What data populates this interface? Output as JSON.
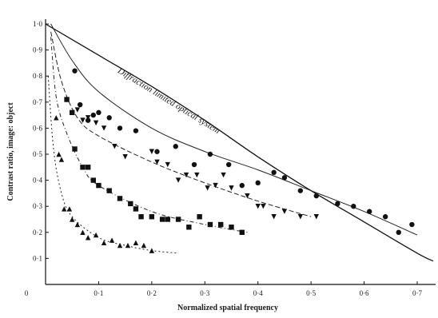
{
  "chart_data": {
    "type": "scatter",
    "xlabel": "Normalized spatial frequency",
    "ylabel": "Contrast ratio, image: object",
    "xlim": [
      0,
      0.73
    ],
    "ylim": [
      0,
      1.0
    ],
    "x_ticks": [
      {
        "value": 0,
        "label": "0"
      },
      {
        "value": 0.1,
        "label": "0·1"
      },
      {
        "value": 0.2,
        "label": "0·2"
      },
      {
        "value": 0.3,
        "label": "0·3"
      },
      {
        "value": 0.4,
        "label": "0·4"
      },
      {
        "value": 0.5,
        "label": "0·5"
      },
      {
        "value": 0.6,
        "label": "0·6"
      },
      {
        "value": 0.7,
        "label": "0·7"
      }
    ],
    "y_ticks": [
      {
        "value": 0.1,
        "label": "0·1"
      },
      {
        "value": 0.2,
        "label": "0·2"
      },
      {
        "value": 0.3,
        "label": "0·3"
      },
      {
        "value": 0.4,
        "label": "0·4"
      },
      {
        "value": 0.5,
        "label": "0·5"
      },
      {
        "value": 0.6,
        "label": "0·6"
      },
      {
        "value": 0.7,
        "label": "0·7"
      },
      {
        "value": 0.8,
        "label": "0·8"
      },
      {
        "value": 0.9,
        "label": "0·9"
      },
      {
        "value": 1.0,
        "label": "1·0"
      }
    ],
    "grid": false,
    "annotation": "Diffraction limited optical system",
    "series": [
      {
        "marker": "circle",
        "points": [
          [
            0.055,
            0.82
          ],
          [
            0.065,
            0.69
          ],
          [
            0.08,
            0.63
          ],
          [
            0.09,
            0.65
          ],
          [
            0.1,
            0.66
          ],
          [
            0.12,
            0.64
          ],
          [
            0.14,
            0.6
          ],
          [
            0.17,
            0.59
          ],
          [
            0.21,
            0.51
          ],
          [
            0.245,
            0.53
          ],
          [
            0.28,
            0.46
          ],
          [
            0.31,
            0.5
          ],
          [
            0.345,
            0.46
          ],
          [
            0.37,
            0.38
          ],
          [
            0.4,
            0.39
          ],
          [
            0.43,
            0.43
          ],
          [
            0.45,
            0.41
          ],
          [
            0.48,
            0.36
          ],
          [
            0.51,
            0.34
          ],
          [
            0.55,
            0.31
          ],
          [
            0.58,
            0.3
          ],
          [
            0.61,
            0.28
          ],
          [
            0.64,
            0.26
          ],
          [
            0.665,
            0.2
          ],
          [
            0.69,
            0.23
          ]
        ],
        "curve": [
          [
            0.01,
            1.0
          ],
          [
            0.05,
            0.86
          ],
          [
            0.1,
            0.74
          ],
          [
            0.2,
            0.6
          ],
          [
            0.3,
            0.51
          ],
          [
            0.4,
            0.44
          ],
          [
            0.5,
            0.36
          ],
          [
            0.6,
            0.28
          ],
          [
            0.7,
            0.19
          ]
        ]
      },
      {
        "marker": "triangle-down",
        "points": [
          [
            0.06,
            0.67
          ],
          [
            0.07,
            0.63
          ],
          [
            0.08,
            0.64
          ],
          [
            0.095,
            0.62
          ],
          [
            0.11,
            0.6
          ],
          [
            0.13,
            0.53
          ],
          [
            0.15,
            0.49
          ],
          [
            0.2,
            0.51
          ],
          [
            0.21,
            0.47
          ],
          [
            0.23,
            0.46
          ],
          [
            0.25,
            0.4
          ],
          [
            0.265,
            0.42
          ],
          [
            0.285,
            0.42
          ],
          [
            0.305,
            0.37
          ],
          [
            0.32,
            0.38
          ],
          [
            0.335,
            0.42
          ],
          [
            0.35,
            0.37
          ],
          [
            0.38,
            0.34
          ],
          [
            0.4,
            0.3
          ],
          [
            0.41,
            0.3
          ],
          [
            0.43,
            0.26
          ],
          [
            0.45,
            0.28
          ],
          [
            0.48,
            0.26
          ],
          [
            0.51,
            0.26
          ]
        ],
        "curve": [
          [
            0.01,
            0.97
          ],
          [
            0.03,
            0.78
          ],
          [
            0.06,
            0.64
          ],
          [
            0.1,
            0.57
          ],
          [
            0.2,
            0.47
          ],
          [
            0.3,
            0.39
          ],
          [
            0.4,
            0.32
          ],
          [
            0.5,
            0.26
          ]
        ]
      },
      {
        "marker": "square",
        "points": [
          [
            0.04,
            0.71
          ],
          [
            0.05,
            0.66
          ],
          [
            0.055,
            0.52
          ],
          [
            0.07,
            0.45
          ],
          [
            0.08,
            0.45
          ],
          [
            0.09,
            0.4
          ],
          [
            0.1,
            0.38
          ],
          [
            0.12,
            0.36
          ],
          [
            0.14,
            0.33
          ],
          [
            0.16,
            0.31
          ],
          [
            0.17,
            0.29
          ],
          [
            0.18,
            0.26
          ],
          [
            0.2,
            0.26
          ],
          [
            0.22,
            0.25
          ],
          [
            0.23,
            0.25
          ],
          [
            0.25,
            0.25
          ],
          [
            0.27,
            0.22
          ],
          [
            0.29,
            0.26
          ],
          [
            0.31,
            0.23
          ],
          [
            0.33,
            0.23
          ],
          [
            0.35,
            0.22
          ],
          [
            0.37,
            0.2
          ]
        ],
        "curve": [
          [
            0.01,
            0.95
          ],
          [
            0.02,
            0.72
          ],
          [
            0.04,
            0.58
          ],
          [
            0.07,
            0.45
          ],
          [
            0.1,
            0.38
          ],
          [
            0.2,
            0.28
          ],
          [
            0.3,
            0.23
          ],
          [
            0.38,
            0.2
          ]
        ]
      },
      {
        "marker": "triangle-up",
        "points": [
          [
            0.02,
            0.64
          ],
          [
            0.025,
            0.5
          ],
          [
            0.03,
            0.48
          ],
          [
            0.035,
            0.29
          ],
          [
            0.045,
            0.29
          ],
          [
            0.05,
            0.25
          ],
          [
            0.06,
            0.23
          ],
          [
            0.07,
            0.2
          ],
          [
            0.08,
            0.18
          ],
          [
            0.095,
            0.19
          ],
          [
            0.11,
            0.16
          ],
          [
            0.125,
            0.17
          ],
          [
            0.14,
            0.15
          ],
          [
            0.155,
            0.15
          ],
          [
            0.17,
            0.16
          ],
          [
            0.185,
            0.15
          ],
          [
            0.2,
            0.13
          ]
        ],
        "curve": [
          [
            0.005,
            0.8
          ],
          [
            0.015,
            0.52
          ],
          [
            0.03,
            0.35
          ],
          [
            0.05,
            0.26
          ],
          [
            0.1,
            0.18
          ],
          [
            0.15,
            0.15
          ],
          [
            0.2,
            0.13
          ],
          [
            0.25,
            0.12
          ]
        ]
      }
    ],
    "diffraction_line": [
      [
        0.0,
        1.0
      ],
      [
        0.1,
        0.88
      ],
      [
        0.2,
        0.76
      ],
      [
        0.3,
        0.63
      ],
      [
        0.4,
        0.49
      ],
      [
        0.5,
        0.36
      ],
      [
        0.6,
        0.24
      ],
      [
        0.7,
        0.12
      ],
      [
        0.73,
        0.09
      ]
    ]
  }
}
